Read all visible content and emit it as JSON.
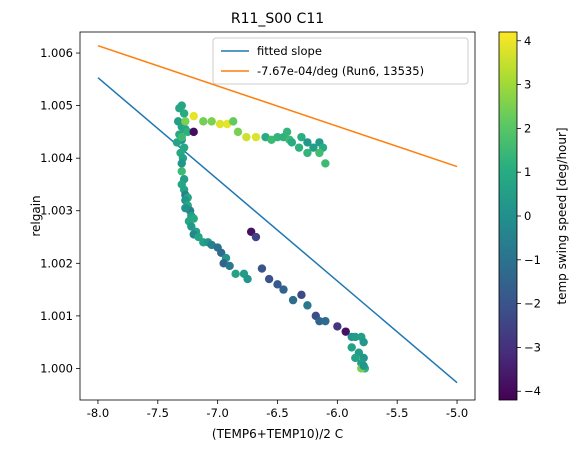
{
  "chart_data": {
    "type": "scatter",
    "title": "R11_S00 C11",
    "xlabel": "(TEMP6+TEMP10)/2 C",
    "ylabel": "relgain",
    "xlim": [
      -8.15,
      -4.85
    ],
    "ylim": [
      0.9994,
      1.0064
    ],
    "xticks": [
      "-8.0",
      "-7.5",
      "-7.0",
      "-6.5",
      "-6.0",
      "-5.5",
      "-5.0"
    ],
    "xtick_values": [
      -8.0,
      -7.5,
      -7.0,
      -6.5,
      -6.0,
      -5.5,
      -5.0
    ],
    "yticks": [
      "1.000",
      "1.001",
      "1.002",
      "1.003",
      "1.004",
      "1.005",
      "1.006"
    ],
    "ytick_values": [
      1.0,
      1.001,
      1.002,
      1.003,
      1.004,
      1.005,
      1.006
    ],
    "grid": false,
    "legend_position": "top-right",
    "colorbar": {
      "label": "temp swing speed [deg/hour]",
      "min": -4.2,
      "max": 4.2,
      "ticks": [
        "−4",
        "−3",
        "−2",
        "−1",
        "0",
        "1",
        "2",
        "3",
        "4"
      ],
      "tick_values": [
        -4,
        -3,
        -2,
        -1,
        0,
        1,
        2,
        3,
        4
      ],
      "colormap": "viridis"
    },
    "lines": [
      {
        "name": "fitted slope",
        "color": "#1f77b4",
        "x": [
          -8.0,
          -5.0
        ],
        "y": [
          1.00553,
          0.99973
        ]
      },
      {
        "name": "-7.67e-04/deg (Run6, 13535)",
        "color": "#ff7f0e",
        "x": [
          -8.0,
          -5.0
        ],
        "y": [
          1.00614,
          1.00384
        ]
      }
    ],
    "points": [
      {
        "x": -7.3,
        "y": 1.005,
        "c": 0.8
      },
      {
        "x": -7.32,
        "y": 1.00495,
        "c": 0.8
      },
      {
        "x": -7.28,
        "y": 1.00485,
        "c": 1.0
      },
      {
        "x": -7.33,
        "y": 1.0047,
        "c": 0.5
      },
      {
        "x": -7.3,
        "y": 1.0046,
        "c": 0.6
      },
      {
        "x": -7.27,
        "y": 1.00455,
        "c": 0.8
      },
      {
        "x": -7.32,
        "y": 1.00445,
        "c": 0.9
      },
      {
        "x": -7.3,
        "y": 1.00435,
        "c": 0.2
      },
      {
        "x": -7.34,
        "y": 1.0043,
        "c": 0.7
      },
      {
        "x": -7.28,
        "y": 1.0042,
        "c": 0.8
      },
      {
        "x": -7.31,
        "y": 1.0041,
        "c": 0.9
      },
      {
        "x": -7.29,
        "y": 1.004,
        "c": 0.6
      },
      {
        "x": -7.3,
        "y": 1.0039,
        "c": 0.2
      },
      {
        "x": -7.3,
        "y": 1.00375,
        "c": 1.5
      },
      {
        "x": -7.28,
        "y": 1.0036,
        "c": 0.5
      },
      {
        "x": -7.3,
        "y": 1.0035,
        "c": 0.8
      },
      {
        "x": -7.28,
        "y": 1.0034,
        "c": 0.7
      },
      {
        "x": -7.27,
        "y": 1.0033,
        "c": -0.5
      },
      {
        "x": -7.25,
        "y": 1.00325,
        "c": 0.8
      },
      {
        "x": -7.27,
        "y": 1.0032,
        "c": 0.2
      },
      {
        "x": -7.25,
        "y": 1.0031,
        "c": 0.9
      },
      {
        "x": -7.23,
        "y": 1.003,
        "c": -0.5
      },
      {
        "x": -7.27,
        "y": 1.00305,
        "c": 0.1
      },
      {
        "x": -7.22,
        "y": 1.0029,
        "c": 0.5
      },
      {
        "x": -7.24,
        "y": 1.0028,
        "c": 0.8
      },
      {
        "x": -7.22,
        "y": 1.0027,
        "c": 0.3
      },
      {
        "x": -7.2,
        "y": 1.00285,
        "c": 0.9
      },
      {
        "x": -7.18,
        "y": 1.0026,
        "c": 0.6
      },
      {
        "x": -7.2,
        "y": 1.00255,
        "c": -0.3
      },
      {
        "x": -7.16,
        "y": 1.0025,
        "c": 0.7
      },
      {
        "x": -7.12,
        "y": 1.0024,
        "c": 0.6
      },
      {
        "x": -7.08,
        "y": 1.0024,
        "c": 0.2
      },
      {
        "x": -7.05,
        "y": 1.00235,
        "c": -0.5
      },
      {
        "x": -7.0,
        "y": 1.0023,
        "c": -1.0
      },
      {
        "x": -6.97,
        "y": 1.0022,
        "c": -1.2
      },
      {
        "x": -6.93,
        "y": 1.0021,
        "c": 0.2
      },
      {
        "x": -6.95,
        "y": 1.002,
        "c": -1.5
      },
      {
        "x": -6.9,
        "y": 1.00195,
        "c": -0.8
      },
      {
        "x": -6.85,
        "y": 1.0018,
        "c": 0.6
      },
      {
        "x": -6.78,
        "y": 1.0018,
        "c": 0.4
      },
      {
        "x": -6.75,
        "y": 1.0017,
        "c": 0.2
      },
      {
        "x": -6.72,
        "y": 1.0026,
        "c": -3.8
      },
      {
        "x": -6.68,
        "y": 1.0025,
        "c": -2.5
      },
      {
        "x": -6.63,
        "y": 1.0019,
        "c": -2.0
      },
      {
        "x": -6.57,
        "y": 1.0017,
        "c": -2.0
      },
      {
        "x": -6.5,
        "y": 1.0016,
        "c": -1.8
      },
      {
        "x": -6.45,
        "y": 1.0015,
        "c": -1.5
      },
      {
        "x": -6.37,
        "y": 1.0013,
        "c": -1.2
      },
      {
        "x": -6.3,
        "y": 1.0014,
        "c": -2.3
      },
      {
        "x": -6.25,
        "y": 1.0012,
        "c": -0.8
      },
      {
        "x": -6.18,
        "y": 1.001,
        "c": -2.2
      },
      {
        "x": -6.15,
        "y": 1.0009,
        "c": -1.5
      },
      {
        "x": -6.1,
        "y": 1.0009,
        "c": -1.2
      },
      {
        "x": -6.0,
        "y": 1.0008,
        "c": -2.8
      },
      {
        "x": -5.93,
        "y": 1.0007,
        "c": -3.8
      },
      {
        "x": -5.88,
        "y": 1.0006,
        "c": 0.2
      },
      {
        "x": -5.85,
        "y": 1.0006,
        "c": 0.4
      },
      {
        "x": -5.8,
        "y": 1.0006,
        "c": 0.5
      },
      {
        "x": -5.78,
        "y": 1.0005,
        "c": 0.3
      },
      {
        "x": -5.88,
        "y": 1.0004,
        "c": 0.6
      },
      {
        "x": -5.82,
        "y": 1.0003,
        "c": 0.4
      },
      {
        "x": -5.85,
        "y": 1.0002,
        "c": 0.7
      },
      {
        "x": -5.78,
        "y": 1.0002,
        "c": 0.2
      },
      {
        "x": -5.8,
        "y": 1.0001,
        "c": 0.5
      },
      {
        "x": -5.77,
        "y": 1.0,
        "c": 1.2
      },
      {
        "x": -5.8,
        "y": 1.0,
        "c": 2.5
      },
      {
        "x": -5.78,
        "y": 1.00005,
        "c": 0.2
      },
      {
        "x": -7.3,
        "y": 1.0044,
        "c": 1.5
      },
      {
        "x": -7.2,
        "y": 1.0048,
        "c": 3.9
      },
      {
        "x": -7.25,
        "y": 1.0045,
        "c": 1.2
      },
      {
        "x": -7.12,
        "y": 1.0047,
        "c": 2.4
      },
      {
        "x": -7.05,
        "y": 1.0047,
        "c": 2.5
      },
      {
        "x": -6.98,
        "y": 1.00465,
        "c": 3.8
      },
      {
        "x": -6.92,
        "y": 1.00465,
        "c": 3.9
      },
      {
        "x": -6.87,
        "y": 1.0047,
        "c": 2.2
      },
      {
        "x": -6.83,
        "y": 1.0045,
        "c": 2.5
      },
      {
        "x": -6.76,
        "y": 1.0044,
        "c": 3.6
      },
      {
        "x": -6.68,
        "y": 1.0044,
        "c": 3.8
      },
      {
        "x": -6.6,
        "y": 1.0044,
        "c": 1.0
      },
      {
        "x": -6.55,
        "y": 1.00435,
        "c": 1.5
      },
      {
        "x": -6.5,
        "y": 1.0044,
        "c": 1.3
      },
      {
        "x": -6.45,
        "y": 1.0044,
        "c": 1.2
      },
      {
        "x": -6.4,
        "y": 1.00435,
        "c": 1.5
      },
      {
        "x": -6.38,
        "y": 1.0043,
        "c": 1.0
      },
      {
        "x": -6.32,
        "y": 1.0042,
        "c": 1.2
      },
      {
        "x": -6.25,
        "y": 1.0043,
        "c": 0.3
      },
      {
        "x": -6.2,
        "y": 1.0042,
        "c": 0.5
      },
      {
        "x": -6.15,
        "y": 1.0043,
        "c": 0.4
      },
      {
        "x": -6.12,
        "y": 1.0042,
        "c": 1.0
      },
      {
        "x": -6.25,
        "y": 1.0041,
        "c": 1.3
      },
      {
        "x": -6.15,
        "y": 1.0041,
        "c": 1.6
      },
      {
        "x": -6.1,
        "y": 1.0039,
        "c": 1.5
      },
      {
        "x": -6.3,
        "y": 1.0044,
        "c": 1.1
      },
      {
        "x": -6.42,
        "y": 1.0045,
        "c": 1.3
      },
      {
        "x": -7.2,
        "y": 1.0045,
        "c": -3.9
      },
      {
        "x": -7.27,
        "y": 1.0047,
        "c": 2.5
      }
    ]
  }
}
